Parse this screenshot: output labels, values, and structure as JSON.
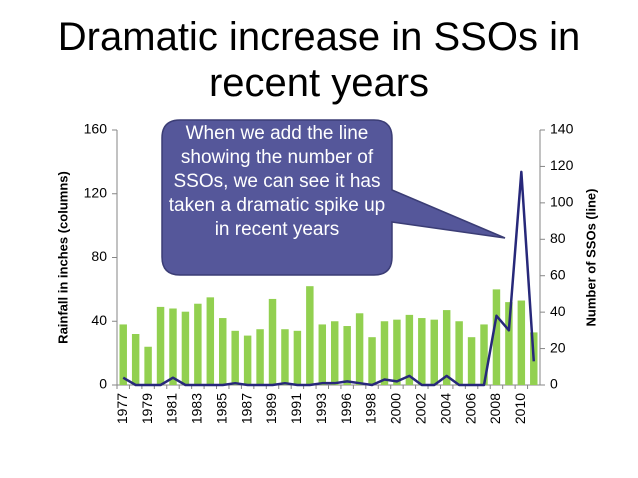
{
  "chart_data": {
    "type": "bar",
    "title": "Dramatic increase in SSOs in recent years",
    "annotation": "When we add the line showing the number of SSOs, we can see it has taken a dramatic spike up in recent years",
    "ylabel": "Rainfall in inches (columns)",
    "y2label": "Number of SSOs (line)",
    "categories": [
      "1977",
      null,
      "1979",
      null,
      "1981",
      null,
      "1983",
      null,
      "1985",
      null,
      "1987",
      null,
      "1989",
      null,
      "1991",
      null,
      "1993",
      null,
      "1996",
      null,
      "1998",
      null,
      "2000",
      null,
      "2002",
      null,
      "2004",
      null,
      "2006",
      null,
      "2008",
      null,
      "2010",
      null
    ],
    "series": [
      {
        "name": "Rainfall in inches",
        "color": "#92d050",
        "type": "bar",
        "values": [
          38,
          32,
          24,
          49,
          48,
          46,
          51,
          55,
          42,
          34,
          31,
          35,
          54,
          35,
          34,
          62,
          38,
          40,
          37,
          45,
          30,
          40,
          41,
          44,
          42,
          41,
          47,
          40,
          30,
          38,
          60,
          52,
          53,
          33
        ]
      },
      {
        "name": "Number of SSOs",
        "color": "#27287a",
        "type": "line",
        "axis": "y2",
        "values": [
          4,
          0,
          0,
          0,
          4,
          0,
          0,
          0,
          0,
          1,
          0,
          0,
          0,
          1,
          0,
          0,
          1,
          1,
          2,
          1,
          0,
          3,
          2,
          5,
          0,
          0,
          5,
          0,
          0,
          0,
          38,
          30,
          117,
          13
        ]
      }
    ],
    "ylim": [
      0,
      160
    ],
    "yticks": [
      0,
      40,
      80,
      120,
      160
    ],
    "y2lim": [
      0,
      140
    ],
    "y2ticks": [
      0,
      20,
      40,
      60,
      80,
      100,
      120,
      140
    ],
    "grid": false
  }
}
